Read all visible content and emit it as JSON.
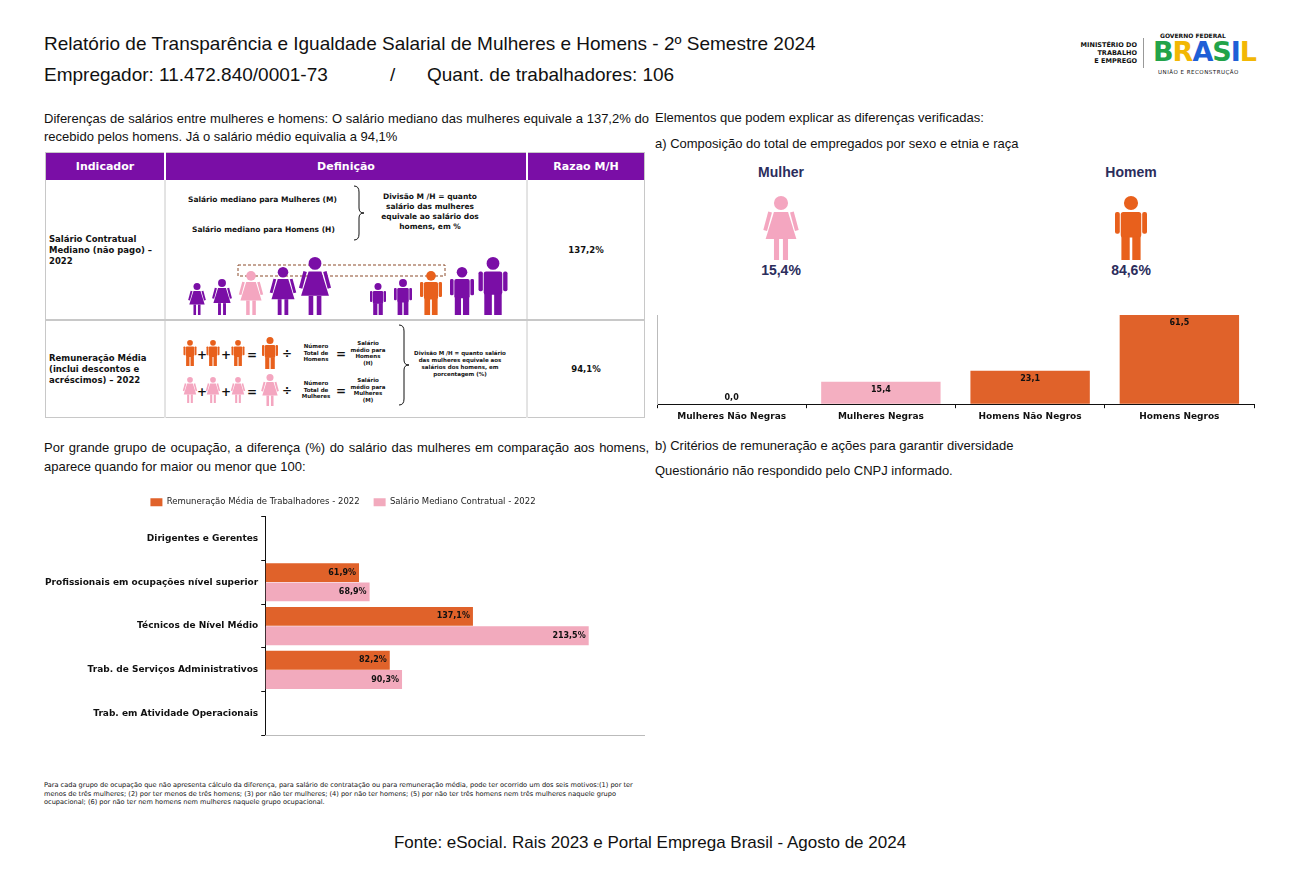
{
  "header": {
    "title": "Relatório de Transparência e Igualdade Salarial de Mulheres e Homens - 2º Semestre 2024",
    "employer": "Empregador: 11.472.840/0001-73",
    "separator": "/",
    "workers": "Quant. de trabalhadores: 106"
  },
  "logo": {
    "ministry": [
      "MINISTÉRIO DO",
      "TRABALHO",
      "E EMPREGO"
    ],
    "government": "GOVERNO FEDERAL",
    "country": "BRASIL",
    "motto": "UNIÃO E RECONSTRUÇÃO"
  },
  "intro": "Diferenças de salários entre mulheres e homens: O salário mediano das mulheres equivale a 137,2% do recebido pelos homens. Já o salário médio equivalia a 94,1%",
  "table": {
    "columns": [
      "Indicador",
      "Definição",
      "Razao M/H"
    ],
    "operators": {
      "plus": "+",
      "equals": "=",
      "divide": "÷"
    },
    "rows": [
      {
        "indicator": "Salário Contratual Mediano (não pago) – 2022",
        "definition": {
          "median_women": "Salário mediano para Mulheres (M)",
          "median_men": "Salário mediano para Homens (H)",
          "note": "Divisão M /H = quanto salário das mulheres equivale ao salário dos homens, em %"
        },
        "ratio": "137,2%"
      },
      {
        "indicator": "Remuneração Média (inclui descontos e acréscimos) – 2022",
        "definition": {
          "men_total": "Número Total de Homens",
          "men_result": "Salário médio para Homens (H)",
          "women_total": "Número Total de Mulheres",
          "women_result": "Salário médio para Mulheres (M)",
          "note": "Divisão M /H = quanto salário das mulheres equivale aos salários dos homens, em porcentagem (%)"
        },
        "ratio": "94,1%"
      }
    ]
  },
  "explain": {
    "heading": "Elementos que podem explicar as diferenças verificadas:",
    "a": "a) Composição do total de empregados por sexo e etnia e raça",
    "women_label": "Mulher",
    "women_share": "15,4%",
    "men_label": "Homem",
    "men_share": "84,6%",
    "b": "b) Critérios de remuneração e ações para garantir diversidade",
    "b_text": "Questionário não respondido pelo CNPJ informado."
  },
  "occupation_intro": "Por grande grupo de ocupação, a diferença (%) do salário das mulheres em comparação aos homens, aparece quando for maior ou menor que 100:",
  "chart_data": [
    {
      "type": "bar",
      "categories": [
        "Mulheres Não Negras",
        "Mulheres Negras",
        "Homens Não Negros",
        "Homens Negros"
      ],
      "values": [
        0,
        15.4,
        23.1,
        61.5
      ],
      "value_labels": [
        "0,0",
        "15,4",
        "23,1",
        "61,5"
      ],
      "colors": [
        "#f4afc1",
        "#f4afc1",
        "#e0622a",
        "#e0622a"
      ],
      "ylim": [
        0,
        61.5
      ],
      "grid": false,
      "data_labels": true,
      "tick_labels": "x"
    },
    {
      "type": "bar",
      "orientation": "horizontal",
      "categories": [
        "Dirigentes e Gerentes",
        "Profissionais em ocupações nível superior",
        "Técnicos de Nível Médio",
        "Trab. de Serviços Administrativos",
        "Trab. em Atividade Operacionais"
      ],
      "series": [
        {
          "name": "Remuneração Média de Trabalhadores - 2022",
          "color": "#e0622a",
          "values": [
            null,
            61.9,
            137.1,
            82.2,
            null
          ],
          "value_labels": [
            null,
            "61,9%",
            "137,1%",
            "82,2%",
            null
          ]
        },
        {
          "name": "Salário Mediano Contratual - 2022",
          "color": "#f2aabd",
          "values": [
            null,
            68.9,
            213.5,
            90.3,
            null
          ],
          "value_labels": [
            null,
            "68,9%",
            "213,5%",
            "90,3%",
            null
          ]
        }
      ],
      "xlim": [
        0,
        250
      ],
      "legend": "top",
      "grid": false,
      "data_labels": true,
      "tick_labels": "y"
    }
  ],
  "footnote": "Para cada grupo de ocupação que não apresenta cálculo da diferença, para salário de contratação ou para remuneração média, pode ter ocorrido um dos seis motivos:(1) por ter menos de três mulheres; (2) por ter menos de três homens; (3) por não ter mulheres; (4) por não ter homens; (5) por não ter três homens nem três mulheres naquele grupo ocupacional; (6) por não ter nem homens nem mulheres naquele grupo ocupacional.",
  "source": "Fonte: eSocial. Rais 2023 e Portal Emprega Brasil - Agosto de 2024"
}
